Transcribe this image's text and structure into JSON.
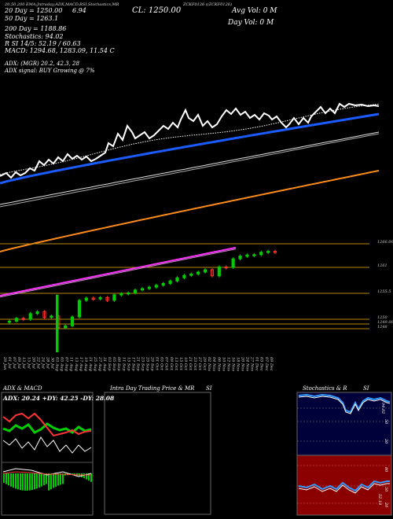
{
  "header": {
    "top_left_small": "20,50,200 EMA;Jntraday;ADX,MACD,RSI,Stochastics,MR",
    "top_right_small": "ZCKF0126 ((ZCKF0126)",
    "ema20": "20 Day = 1250.00",
    "ema20_val": "6.94",
    "ema50": "50 Day = 1263.1",
    "ema200": "200 Day = 1188.86",
    "close": "CL: 1250.00",
    "avg_vol": "Avg Vol: 0 M",
    "day_vol": "Day Vol: 0 M",
    "stoch": "Stochastics: 94.02",
    "rsi_line": "R            SI 14/5: 52.19 / 60.63",
    "macd": "MACD: 1294.68, 1283.09, 11.54 C",
    "adx": "ADX:                        (MGR) 20.2, 42.3, 28",
    "adx_signal": "ADX signal:                    BUY Growing @ 7%"
  },
  "colors": {
    "price": "#ffffff",
    "ema20": "#ffffff",
    "ema50": "#1a5cff",
    "ema200": "#ff8c1a",
    "bull": "#00cc00",
    "bear": "#ff3333",
    "level": "#b8860b",
    "magenta": "#ff33ff"
  },
  "levels": [
    {
      "label": "1266.00",
      "value": 1266.0
    },
    {
      "label": "1261",
      "value": 1261.0
    },
    {
      "label": "1255.5",
      "value": 1255.5
    },
    {
      "label": "1250",
      "value": 1250.0
    },
    {
      "label": "1248",
      "value": 1248.0
    },
    {
      "label": "1249.00",
      "value": 1249.0
    }
  ],
  "dates": [
    "29 Jun",
    "01 Jul",
    "07 Jul",
    "09 Jul",
    "13 Jul",
    "15 Jul",
    "20 Jul",
    "22 Jul",
    "24 Jul",
    "28 Jul",
    "30 Jul",
    "03 Aug",
    "05 Aug",
    "07 Aug",
    "11 Aug",
    "13 Aug",
    "17 Aug",
    "19 Aug",
    "21 Aug",
    "25 Aug",
    "27 Aug",
    "31 Aug",
    "03 Sep",
    "05 Sep",
    "09 Sep",
    "11 Sep",
    "15 Sep",
    "17 Sep",
    "21 Sep",
    "23 Sep",
    "25 Sep",
    "29 Sep",
    "01 Oct",
    "05 Oct",
    "07 Oct",
    "09 Oct",
    "13 Oct",
    "15 Oct",
    "19 Oct",
    "21 Oct",
    "23 Oct",
    "27 Oct",
    "29 Oct",
    "02 Nov",
    "04 Nov",
    "06 Nov",
    "10 Nov",
    "12 Nov",
    "16 Nov",
    "18 Nov",
    "20 Nov",
    "24 Nov",
    "27 Nov",
    "01 Dec",
    "03 Dec",
    "07 Dec",
    "09 Dec"
  ],
  "panels": {
    "adx_title": "ADX & MACD",
    "adx_readout": "ADX: 20.24  +DY: 42.25 -DY: 28.08",
    "intra_title": "Intra Day Trading Price & MR",
    "intra_si": "SI",
    "stoch_title": "Stochastics & R",
    "stoch_si": "SI",
    "stoch_tick_top": "94.02",
    "stoch_ticks": [
      "50",
      "20"
    ],
    "rsi_tick_top": "80",
    "rsi_ticks": [
      "50",
      "20"
    ],
    "rsi_val": "52.19"
  },
  "chart_data": {
    "type": "line",
    "title": "",
    "candles_trend": {
      "start": 1249.0,
      "end": 1266.0,
      "values": [
        1249.6,
        1250.2,
        1250.0,
        1251.2,
        1251.6,
        1250.4,
        1250.7,
        1248.2,
        1248.6,
        1250.5,
        1254.0,
        1254.5,
        1254.3,
        1254.6,
        1254.0,
        1255.2,
        1255.4,
        1255.6,
        1256.2,
        1256.5,
        1256.8,
        1257.2,
        1257.6,
        1258.1,
        1258.8,
        1259.3,
        1259.6,
        1260.0,
        1260.5,
        1259.2,
        1261.1,
        1261.0,
        1262.8,
        1263.4,
        1263.6,
        1263.7,
        1264.2,
        1264.4,
        1264.3
      ]
    },
    "series": [
      {
        "name": "20 Day",
        "color": "#ffffff"
      },
      {
        "name": "50 Day",
        "color": "#1a5cff"
      },
      {
        "name": "200 Day",
        "color": "#ff8c1a"
      }
    ]
  }
}
